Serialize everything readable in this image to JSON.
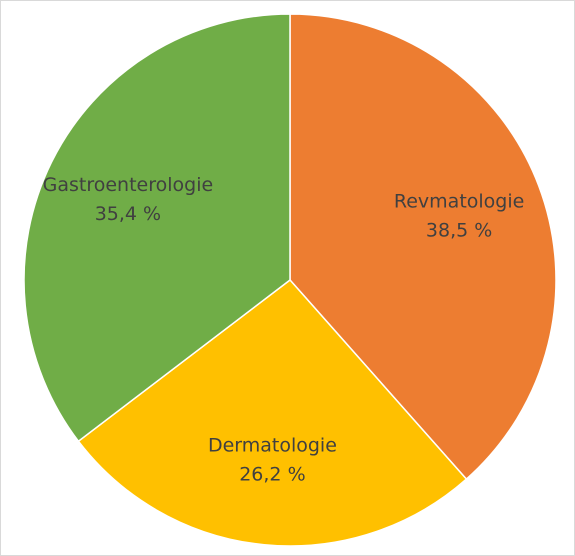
{
  "chart_data": {
    "type": "pie",
    "categories": [
      "Revmatologie",
      "Dermatologie",
      "Gastroenterologie"
    ],
    "values": [
      38.5,
      26.2,
      35.4
    ],
    "value_labels": [
      "38,5 %",
      "26,2 %",
      "35,4 %"
    ],
    "colors": [
      "#ed7d31",
      "#ffc000",
      "#70ad47"
    ]
  }
}
